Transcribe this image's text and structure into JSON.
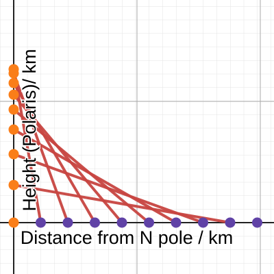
{
  "chart_data": {
    "type": "scatter",
    "x_label": "Distance from N pole / km",
    "y_label": "Height (Polaris)/ km",
    "xlim": [
      -0.506,
      9.62
    ],
    "ylim": [
      -1.9,
      8.23
    ],
    "grid": true,
    "series": [
      {
        "name": null,
        "color": "#6042a6",
        "x": [
          1,
          2,
          3,
          4,
          5,
          6,
          7,
          8,
          9
        ],
        "y": [
          0,
          0,
          0,
          0,
          0,
          0,
          0,
          0,
          0
        ]
      },
      {
        "name": null,
        "color": "#fa7e19",
        "x": [
          0,
          0,
          0,
          0,
          0,
          0,
          0,
          0,
          0
        ],
        "y": [
          0,
          1.39,
          2.53,
          3.44,
          4.18,
          4.73,
          5.16,
          5.52,
          5.67
        ]
      }
    ],
    "line_color": "#c74440"
  }
}
